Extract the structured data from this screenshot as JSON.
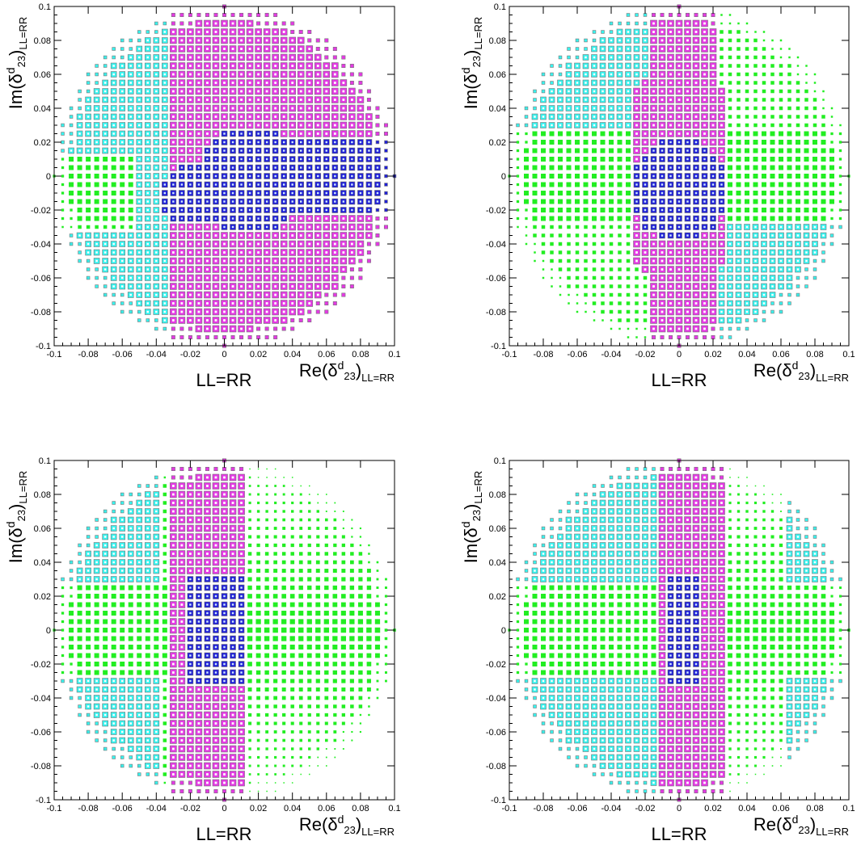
{
  "colors": {
    "cyan": "#38f2ee",
    "magenta": "#e33ae3",
    "blue": "#1f1fd6",
    "green": "#22ee22",
    "grey": "#777777"
  },
  "chart_data": [
    {
      "type": "heatmap",
      "grid": "box-plot over a disc of radius 0.1, four color regions",
      "xlim": [
        -0.1,
        0.1
      ],
      "ylim": [
        -0.1,
        0.1
      ],
      "x_ticks": [
        "-0.1",
        "-0.08",
        "-0.06",
        "-0.04",
        "-0.02",
        "0",
        "0.02",
        "0.04",
        "0.06",
        "0.08",
        "0.1"
      ],
      "y_ticks": [
        "-0.1",
        "-0.08",
        "-0.06",
        "-0.04",
        "-0.02",
        "0",
        "0.02",
        "0.04",
        "0.06",
        "0.08",
        "0.1"
      ],
      "xlabel": {
        "main": "Re(δ",
        "sup": "d",
        "sub1": "23",
        "close": ")",
        "sub2": "LL=RR"
      },
      "ylabel": {
        "main": "Im(δ",
        "sup": "d",
        "sub1": "23",
        "close": ")",
        "sub2": "LL=RR"
      },
      "label": "LL=RR",
      "scenario": 0
    },
    {
      "type": "heatmap",
      "xlim": [
        -0.1,
        0.1
      ],
      "ylim": [
        -0.1,
        0.1
      ],
      "x_ticks": [
        "-0.1",
        "-0.08",
        "-0.06",
        "-0.04",
        "-0.02",
        "0",
        "0.02",
        "0.04",
        "0.06",
        "0.08",
        "0.1"
      ],
      "y_ticks": [
        "-0.1",
        "-0.08",
        "-0.06",
        "-0.04",
        "-0.02",
        "0",
        "0.02",
        "0.04",
        "0.06",
        "0.08",
        "0.1"
      ],
      "xlabel": {
        "main": "Re(δ",
        "sup": "d",
        "sub1": "23",
        "close": ")",
        "sub2": "LL=RR"
      },
      "ylabel": {
        "main": "Im(δ",
        "sup": "d",
        "sub1": "23",
        "close": ")",
        "sub2": "LL=RR"
      },
      "label": "LL=RR",
      "scenario": 1
    },
    {
      "type": "heatmap",
      "xlim": [
        -0.1,
        0.1
      ],
      "ylim": [
        -0.1,
        0.1
      ],
      "x_ticks": [
        "-0.1",
        "-0.08",
        "-0.06",
        "-0.04",
        "-0.02",
        "0",
        "0.02",
        "0.04",
        "0.06",
        "0.08",
        "0.1"
      ],
      "y_ticks": [
        "-0.1",
        "-0.08",
        "-0.06",
        "-0.04",
        "-0.02",
        "0",
        "0.02",
        "0.04",
        "0.06",
        "0.08",
        "0.1"
      ],
      "xlabel": {
        "main": "Re(δ",
        "sup": "d",
        "sub1": "23",
        "close": ")",
        "sub2": "LL=RR"
      },
      "ylabel": {
        "main": "Im(δ",
        "sup": "d",
        "sub1": "23",
        "close": ")",
        "sub2": "LL=RR"
      },
      "label": "LL=RR",
      "scenario": 2
    },
    {
      "type": "heatmap",
      "xlim": [
        -0.1,
        0.1
      ],
      "ylim": [
        -0.1,
        0.1
      ],
      "x_ticks": [
        "-0.1",
        "-0.08",
        "-0.06",
        "-0.04",
        "-0.02",
        "0",
        "0.02",
        "0.04",
        "0.06",
        "0.08",
        "0.1"
      ],
      "y_ticks": [
        "-0.1",
        "-0.08",
        "-0.06",
        "-0.04",
        "-0.02",
        "0",
        "0.02",
        "0.04",
        "0.06",
        "0.08",
        "0.1"
      ],
      "xlabel": {
        "main": "Re(δ",
        "sup": "d",
        "sub1": "23",
        "close": ")",
        "sub2": "LL=RR"
      },
      "ylabel": {
        "main": "Im(δ",
        "sup": "d",
        "sub1": "23",
        "close": ")",
        "sub2": "LL=RR"
      },
      "label": "LL=RR",
      "scenario": 3
    }
  ]
}
